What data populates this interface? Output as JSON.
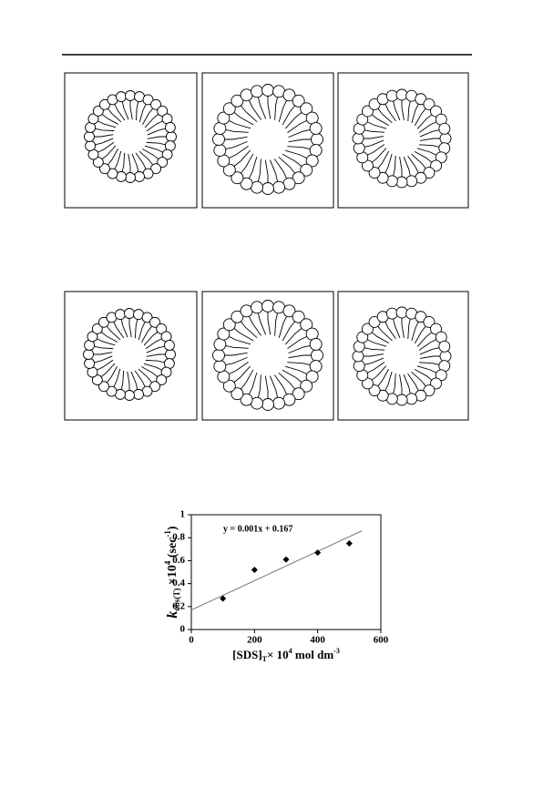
{
  "chart_data": {
    "type": "scatter",
    "annotation": "y = 0.001x + 0.167",
    "ylabel_parts": [
      "k",
      "obs(T)",
      " ×10",
      "4",
      " (sec",
      "-1",
      ")"
    ],
    "xlabel_parts": [
      "[SDS]",
      "T",
      "× 10",
      "4",
      " mol dm",
      "-3"
    ],
    "x": [
      100,
      200,
      300,
      400,
      500
    ],
    "values": [
      0.27,
      0.52,
      0.61,
      0.67,
      0.75
    ],
    "color": "#000000",
    "trendline": {
      "x": [
        0,
        540
      ],
      "values": [
        0.17,
        0.86
      ],
      "color": "#777777"
    },
    "xlim": [
      0,
      600
    ],
    "xticks": [
      0,
      200,
      400,
      600
    ],
    "ylim": [
      0,
      1
    ],
    "yticks": [
      0,
      0.2,
      0.4,
      0.6,
      0.8,
      1
    ]
  }
}
